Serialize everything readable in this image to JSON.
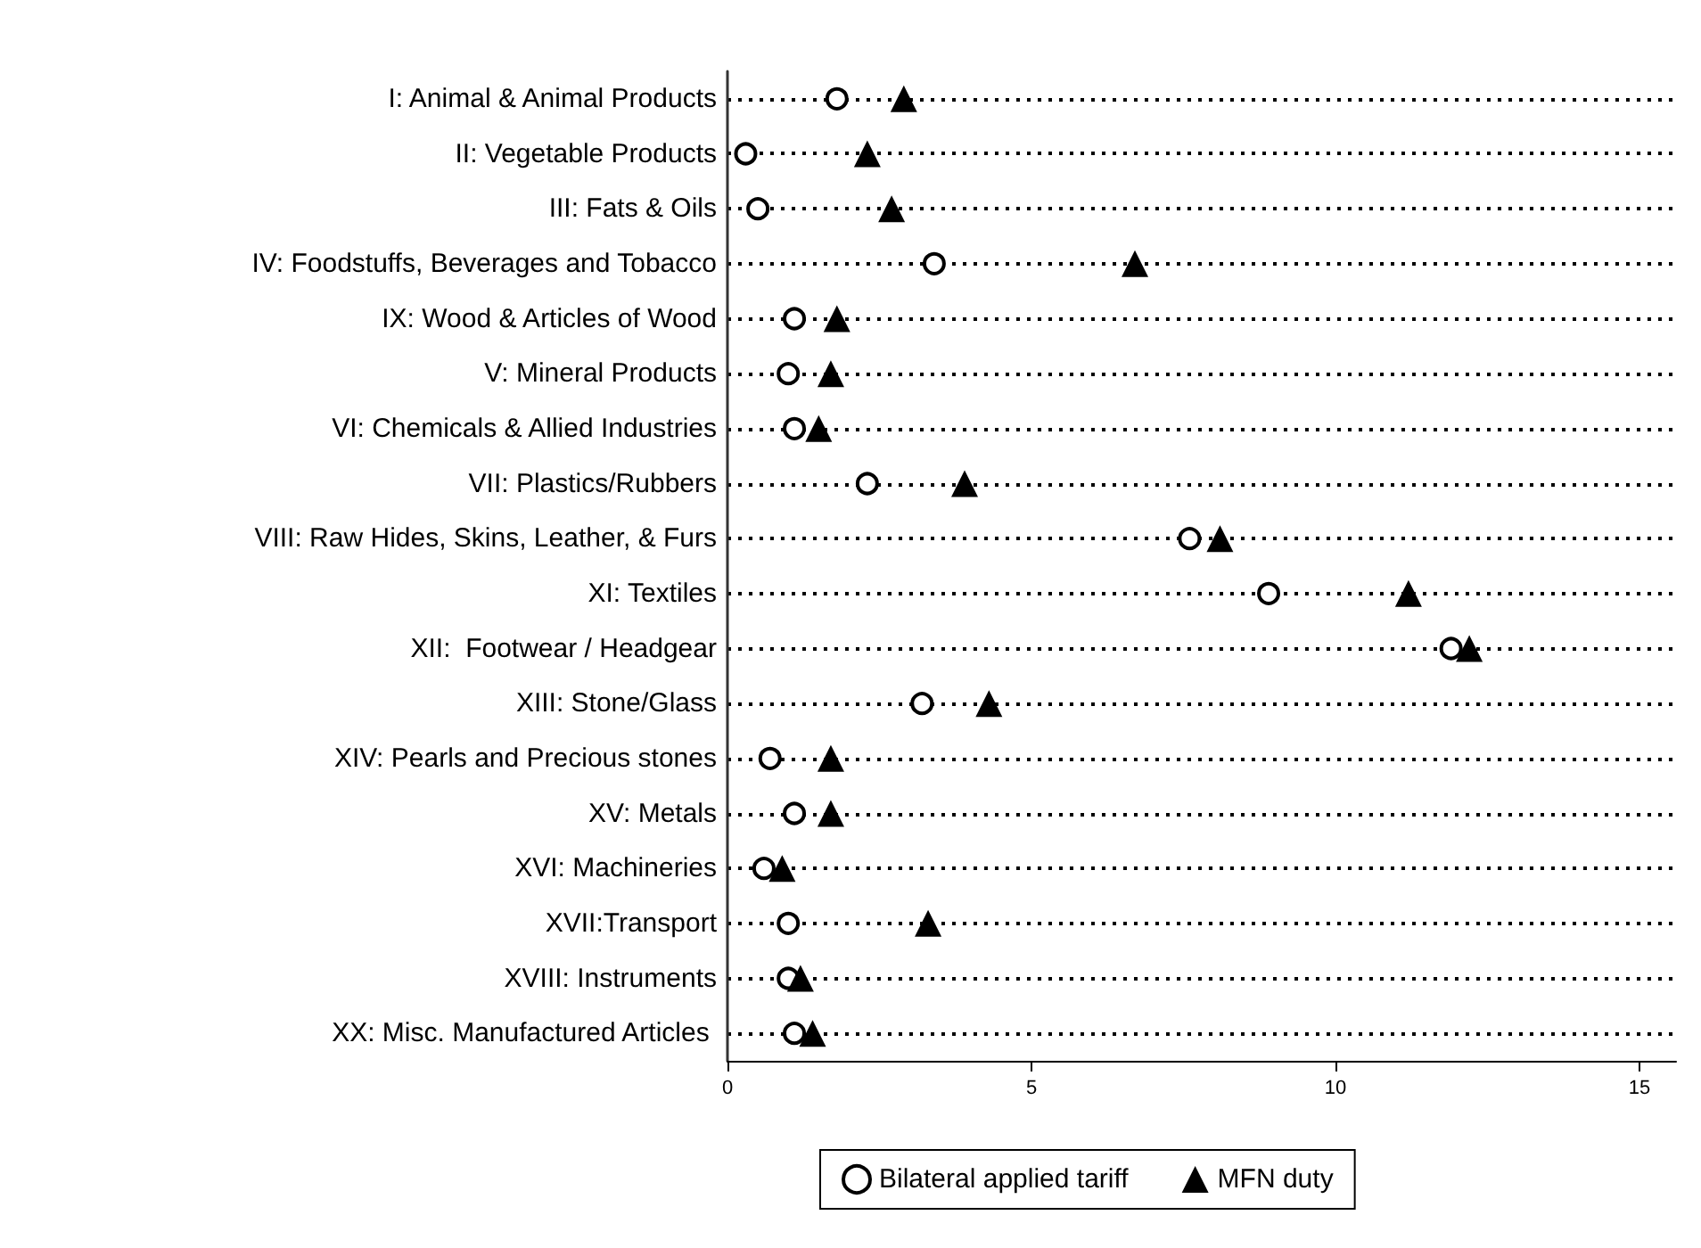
{
  "chart_data": {
    "type": "scatter",
    "orientation": "horizontal",
    "categories": [
      "I: Animal & Animal Products",
      "II: Vegetable Products",
      "III: Fats & Oils",
      "IV: Foodstuffs, Beverages and Tobacco",
      "IX: Wood & Articles of Wood",
      "V: Mineral Products",
      "VI: Chemicals & Allied Industries",
      "VII: Plastics/Rubbers",
      "VIII: Raw Hides, Skins, Leather, & Furs",
      "XI: Textiles",
      "XII:  Footwear / Headgear",
      "XIII: Stone/Glass",
      "XIV: Pearls and Precious stones",
      "XV: Metals",
      "XVI: Machineries",
      "XVII:Transport",
      "XVIII: Instruments",
      "XX: Misc. Manufactured Articles "
    ],
    "series": [
      {
        "name": "Bilateral applied tariff",
        "color": "#000000",
        "marker": "circle",
        "values": [
          1.8,
          0.3,
          0.5,
          3.4,
          1.1,
          1.0,
          1.1,
          2.3,
          7.6,
          8.9,
          11.9,
          3.2,
          0.7,
          1.1,
          0.6,
          1.0,
          1.0,
          1.1
        ]
      },
      {
        "name": "MFN duty",
        "color": "#000000",
        "marker": "triangle",
        "values": [
          2.9,
          2.3,
          2.7,
          6.7,
          1.8,
          1.7,
          1.5,
          3.9,
          8.1,
          11.2,
          12.2,
          4.3,
          1.7,
          1.7,
          0.9,
          3.3,
          1.2,
          1.4
        ]
      }
    ],
    "xlim": [
      0,
      15.6
    ],
    "xticks": [
      0,
      5,
      10,
      15
    ],
    "grid": "y",
    "legend": "bottom"
  }
}
